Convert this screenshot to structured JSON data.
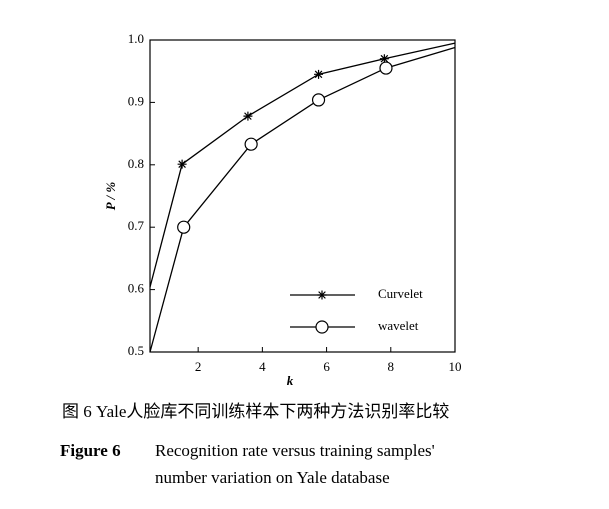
{
  "chart_data": {
    "type": "line",
    "x_label": "k",
    "y_label": "P / %",
    "xlim": [
      0.5,
      10
    ],
    "ylim": [
      0.5,
      1.0
    ],
    "xticks": [
      2,
      4,
      6,
      8,
      10
    ],
    "yticks": [
      0.5,
      0.6,
      0.7,
      0.8,
      0.9,
      {
        "value": 1,
        "label": "1.0"
      }
    ],
    "legend": "lower right",
    "series": [
      {
        "name": "Curvelet",
        "color": "#000000",
        "marker": "star",
        "x": [
          0.5,
          1.5,
          3.55,
          5.75,
          7.8,
          10
        ],
        "values": [
          0.604,
          0.801,
          0.878,
          0.945,
          0.97,
          0.995
        ]
      },
      {
        "name": "wavelet",
        "color": "#000000",
        "marker": "circle",
        "x": [
          0.5,
          1.55,
          3.65,
          5.75,
          7.85,
          10
        ],
        "values": [
          0.5,
          0.7,
          0.833,
          0.904,
          0.955,
          0.988
        ]
      }
    ]
  },
  "caption_zh": "图 6  Yale人脸库不同训练样本下两种方法识别率比较",
  "caption_en": {
    "label": "Figure 6",
    "lines": [
      "Recognition rate versus training samples'",
      "number variation on Yale database"
    ]
  }
}
